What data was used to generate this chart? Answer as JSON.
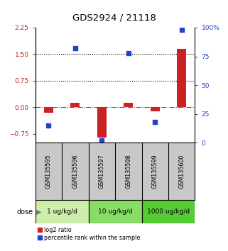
{
  "title": "GDS2924 / 21118",
  "samples": [
    "GSM135595",
    "GSM135596",
    "GSM135597",
    "GSM135598",
    "GSM135599",
    "GSM135600"
  ],
  "log2_ratio": [
    -0.15,
    0.12,
    -0.85,
    0.12,
    -0.12,
    1.65
  ],
  "percentile_rank": [
    15,
    82,
    2,
    78,
    18,
    98
  ],
  "ylim_left": [
    -1.0,
    2.25
  ],
  "ylim_right": [
    0,
    100
  ],
  "yticks_left": [
    -0.75,
    0,
    0.75,
    1.5,
    2.25
  ],
  "yticks_right": [
    0,
    25,
    50,
    75,
    100
  ],
  "hlines_dotted": [
    0.75,
    1.5
  ],
  "hline_dashed_color": "#cc3333",
  "dose_groups": [
    {
      "label": "1 ug/kg/d",
      "indices": [
        0,
        1
      ],
      "color": "#cceeaa"
    },
    {
      "label": "10 ug/kg/d",
      "indices": [
        2,
        3
      ],
      "color": "#88dd66"
    },
    {
      "label": "1000 ug/kg/d",
      "indices": [
        4,
        5
      ],
      "color": "#55cc33"
    }
  ],
  "bar_color": "#cc2222",
  "square_color": "#2244cc",
  "bar_width": 0.35,
  "square_size": 18,
  "left_axis_color": "#cc2222",
  "right_axis_color": "#2244cc",
  "background_color": "#ffffff",
  "sample_area_color": "#c8c8c8",
  "dose_label": "dose"
}
